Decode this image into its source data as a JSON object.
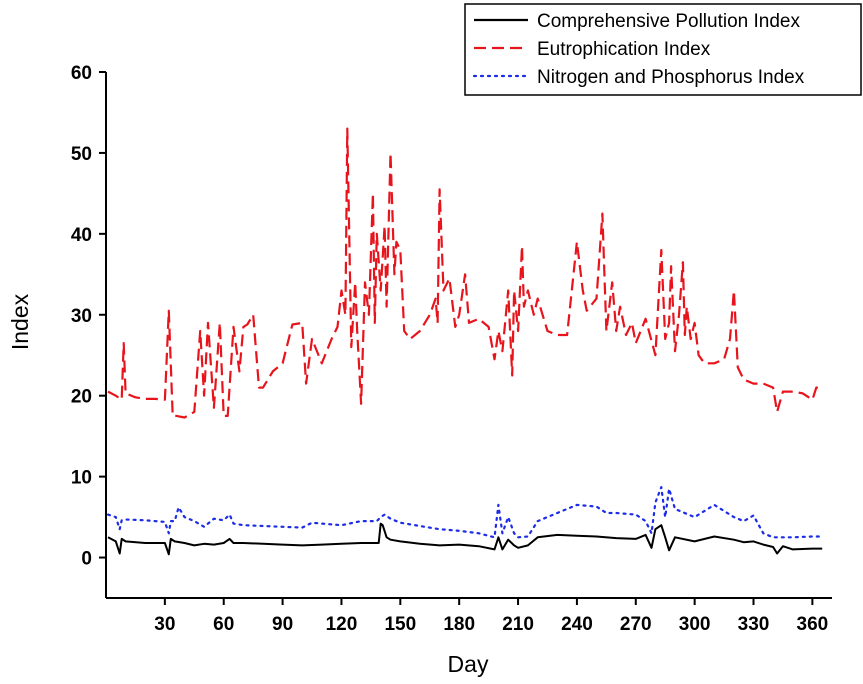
{
  "chart_data": {
    "type": "line",
    "title": "",
    "xlabel": "Day",
    "ylabel": "Index",
    "xlim": [
      0,
      370
    ],
    "ylim": [
      -5,
      60
    ],
    "xticks": [
      30,
      60,
      90,
      120,
      150,
      180,
      210,
      240,
      270,
      300,
      330,
      360
    ],
    "yticks": [
      0,
      10,
      20,
      30,
      40,
      50,
      60
    ],
    "grid": false,
    "legend_position": "top-right",
    "series": [
      {
        "name": "Comprehensive Pollution Index",
        "color": "#000000",
        "style": "solid",
        "x": [
          1,
          5,
          7,
          8,
          10,
          20,
          30,
          32,
          33,
          35,
          40,
          45,
          50,
          55,
          60,
          63,
          65,
          70,
          80,
          90,
          100,
          110,
          120,
          130,
          135,
          139,
          140,
          141,
          143,
          145,
          150,
          160,
          170,
          180,
          190,
          198,
          200,
          202,
          205,
          208,
          210,
          215,
          220,
          230,
          240,
          250,
          260,
          270,
          275,
          278,
          280,
          283,
          285,
          287,
          290,
          300,
          310,
          320,
          325,
          330,
          335,
          340,
          342,
          345,
          350,
          360,
          365
        ],
        "y": [
          2.5,
          2.0,
          0.5,
          2.3,
          2.0,
          1.8,
          1.8,
          0.4,
          2.3,
          2.0,
          1.8,
          1.5,
          1.7,
          1.6,
          1.8,
          2.3,
          1.8,
          1.8,
          1.7,
          1.6,
          1.5,
          1.6,
          1.7,
          1.8,
          1.8,
          1.8,
          4.2,
          4.0,
          2.5,
          2.2,
          2.0,
          1.7,
          1.5,
          1.6,
          1.4,
          1.0,
          2.5,
          1.0,
          2.2,
          1.5,
          1.2,
          1.5,
          2.5,
          2.8,
          2.7,
          2.6,
          2.4,
          2.3,
          2.8,
          1.2,
          3.5,
          4.0,
          2.5,
          0.9,
          2.5,
          2.0,
          2.6,
          2.2,
          1.9,
          2.0,
          1.6,
          1.3,
          0.5,
          1.4,
          1.0,
          1.1,
          1.1
        ]
      },
      {
        "name": "Eutrophication Index",
        "color": "#e8141c",
        "style": "dashed",
        "x": [
          1,
          5,
          8,
          9,
          10,
          15,
          20,
          25,
          30,
          32,
          34,
          36,
          40,
          45,
          48,
          50,
          52,
          55,
          58,
          60,
          62,
          65,
          68,
          70,
          72,
          75,
          78,
          80,
          85,
          90,
          95,
          100,
          102,
          105,
          110,
          115,
          118,
          120,
          122,
          123,
          125,
          127,
          128,
          130,
          132,
          134,
          136,
          137,
          138,
          140,
          142,
          143,
          145,
          147,
          148,
          150,
          152,
          155,
          160,
          165,
          168,
          169,
          170,
          172,
          175,
          178,
          180,
          183,
          185,
          190,
          195,
          198,
          200,
          202,
          205,
          207,
          208,
          210,
          212,
          213,
          215,
          218,
          220,
          225,
          230,
          235,
          240,
          243,
          245,
          250,
          253,
          254,
          255,
          258,
          260,
          262,
          265,
          268,
          270,
          275,
          280,
          283,
          285,
          287,
          288,
          290,
          292,
          294,
          295,
          296,
          298,
          300,
          302,
          305,
          310,
          315,
          318,
          320,
          322,
          325,
          330,
          335,
          340,
          342,
          345,
          350,
          355,
          360,
          362,
          365
        ],
        "y": [
          20.5,
          20,
          19.5,
          26.5,
          20.3,
          19.8,
          19.6,
          19.6,
          19.5,
          30.5,
          17.5,
          17.5,
          17.3,
          18,
          28,
          20,
          29,
          18.5,
          29,
          17.5,
          17.5,
          28.5,
          23,
          28.5,
          28.8,
          30,
          21,
          21,
          23,
          24,
          28.8,
          29,
          21.5,
          27,
          24,
          27,
          28.5,
          33,
          30,
          53,
          26,
          34,
          28,
          19,
          34,
          30,
          45,
          29,
          40,
          33,
          41,
          31,
          50,
          35,
          39,
          38,
          28,
          27,
          28,
          30,
          32,
          29,
          45.5,
          33,
          34.5,
          28.5,
          30,
          35,
          29,
          29.5,
          28.5,
          24.5,
          28,
          25.5,
          33,
          22.5,
          33,
          28,
          38.5,
          31,
          33,
          30,
          32,
          28,
          27.5,
          27.5,
          39,
          33,
          30.5,
          32,
          42.5,
          35,
          28,
          34,
          28,
          31,
          27.5,
          29,
          26.5,
          29.5,
          25,
          38,
          27,
          29,
          36,
          25.5,
          30,
          36.5,
          27.5,
          31,
          27,
          29,
          25,
          24,
          24,
          24.5,
          27,
          33,
          23.5,
          22,
          21.5,
          21.5,
          21,
          18,
          20.5,
          20.5,
          20.3,
          19.5,
          21,
          21
        ]
      },
      {
        "name": "Nitrogen and Phosphorus Index",
        "color": "#1c2ce8",
        "style": "dotted",
        "x": [
          1,
          5,
          7,
          8,
          10,
          20,
          30,
          32,
          33,
          35,
          37,
          40,
          45,
          50,
          55,
          60,
          63,
          65,
          70,
          80,
          90,
          100,
          105,
          110,
          120,
          130,
          138,
          140,
          142,
          145,
          150,
          160,
          170,
          180,
          190,
          198,
          200,
          202,
          205,
          208,
          210,
          215,
          220,
          230,
          240,
          250,
          255,
          260,
          270,
          275,
          278,
          280,
          283,
          285,
          287,
          290,
          300,
          310,
          320,
          325,
          330,
          335,
          340,
          342,
          345,
          350,
          360,
          365
        ],
        "y": [
          5.3,
          5.0,
          3.5,
          4.6,
          4.7,
          4.6,
          4.4,
          3.0,
          4.5,
          4.5,
          6.2,
          5.0,
          4.5,
          3.8,
          4.8,
          4.6,
          5.3,
          4.2,
          4.0,
          3.9,
          3.8,
          3.7,
          4.3,
          4.2,
          4.0,
          4.5,
          4.5,
          5.0,
          5.3,
          4.8,
          4.3,
          3.9,
          3.5,
          3.3,
          3.0,
          2.5,
          6.5,
          3.0,
          5.0,
          3.0,
          2.5,
          2.6,
          4.5,
          5.5,
          6.5,
          6.3,
          5.5,
          5.5,
          5.3,
          4.5,
          3.0,
          6.8,
          8.7,
          5.0,
          8.5,
          6.0,
          5.0,
          6.5,
          5.0,
          4.5,
          5.2,
          3.0,
          2.5,
          2.5,
          2.5,
          2.5,
          2.6,
          2.6
        ]
      }
    ]
  }
}
